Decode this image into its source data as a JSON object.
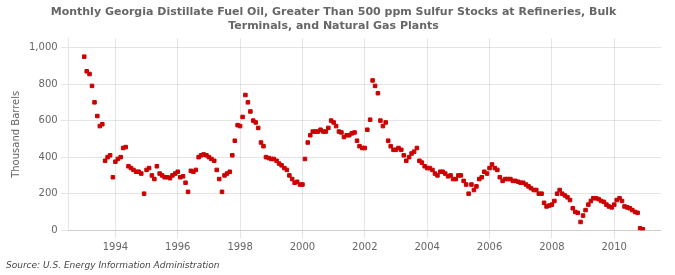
{
  "chart_data": {
    "type": "scatter",
    "title": "Monthly Georgia Distillate Fuel Oil, Greater Than 500 ppm Sulfur Stocks at Refineries, Bulk\nTerminals, and Natural Gas Plants",
    "ylabel": "Thousand Barrels",
    "annotation": "Source: U.S. Energy Information Administration",
    "color": "#cc0000",
    "marker": "square",
    "grid": true,
    "xlim": [
      1992.5,
      2011.5
    ],
    "xticks": [
      1994,
      1996,
      1998,
      2000,
      2002,
      2004,
      2006,
      2008,
      2010
    ],
    "ylim": [
      0,
      1050
    ],
    "yticks": [
      0,
      200,
      400,
      600,
      800,
      {
        "value": 1000,
        "label": "1,000"
      }
    ],
    "x": [
      1993.0,
      1993.08,
      1993.17,
      1993.25,
      1993.33,
      1993.42,
      1993.5,
      1993.58,
      1993.67,
      1993.75,
      1993.83,
      1993.92,
      1994.0,
      1994.08,
      1994.17,
      1994.25,
      1994.33,
      1994.42,
      1994.5,
      1994.58,
      1994.67,
      1994.75,
      1994.83,
      1994.92,
      1995.0,
      1995.08,
      1995.17,
      1995.25,
      1995.33,
      1995.42,
      1995.5,
      1995.58,
      1995.67,
      1995.75,
      1995.83,
      1995.92,
      1996.0,
      1996.08,
      1996.17,
      1996.25,
      1996.33,
      1996.42,
      1996.5,
      1996.58,
      1996.67,
      1996.75,
      1996.83,
      1996.92,
      1997.0,
      1997.08,
      1997.17,
      1997.25,
      1997.33,
      1997.42,
      1997.5,
      1997.58,
      1997.67,
      1997.75,
      1997.83,
      1997.92,
      1998.0,
      1998.08,
      1998.17,
      1998.25,
      1998.33,
      1998.42,
      1998.5,
      1998.58,
      1998.67,
      1998.75,
      1998.83,
      1998.92,
      1999.0,
      1999.08,
      1999.17,
      1999.25,
      1999.33,
      1999.42,
      1999.5,
      1999.58,
      1999.67,
      1999.75,
      1999.83,
      1999.92,
      2000.0,
      2000.08,
      2000.17,
      2000.25,
      2000.33,
      2000.42,
      2000.5,
      2000.58,
      2000.67,
      2000.75,
      2000.83,
      2000.92,
      2001.0,
      2001.08,
      2001.17,
      2001.25,
      2001.33,
      2001.42,
      2001.5,
      2001.58,
      2001.67,
      2001.75,
      2001.83,
      2001.92,
      2002.0,
      2002.08,
      2002.17,
      2002.25,
      2002.33,
      2002.42,
      2002.5,
      2002.58,
      2002.67,
      2002.75,
      2002.83,
      2002.92,
      2003.0,
      2003.08,
      2003.17,
      2003.25,
      2003.33,
      2003.42,
      2003.5,
      2003.58,
      2003.67,
      2003.75,
      2003.83,
      2003.92,
      2004.0,
      2004.08,
      2004.17,
      2004.25,
      2004.33,
      2004.42,
      2004.5,
      2004.58,
      2004.67,
      2004.75,
      2004.83,
      2004.92,
      2005.0,
      2005.08,
      2005.17,
      2005.25,
      2005.33,
      2005.42,
      2005.5,
      2005.58,
      2005.67,
      2005.75,
      2005.83,
      2005.92,
      2006.0,
      2006.08,
      2006.17,
      2006.25,
      2006.33,
      2006.42,
      2006.5,
      2006.58,
      2006.67,
      2006.75,
      2006.83,
      2006.92,
      2007.0,
      2007.08,
      2007.17,
      2007.25,
      2007.33,
      2007.42,
      2007.5,
      2007.58,
      2007.67,
      2007.75,
      2007.83,
      2007.92,
      2008.0,
      2008.08,
      2008.17,
      2008.25,
      2008.33,
      2008.42,
      2008.5,
      2008.58,
      2008.67,
      2008.75,
      2008.83,
      2008.92,
      2009.0,
      2009.08,
      2009.17,
      2009.25,
      2009.33,
      2009.42,
      2009.5,
      2009.58,
      2009.67,
      2009.75,
      2009.83,
      2009.92,
      2010.0,
      2010.08,
      2010.17,
      2010.25,
      2010.33,
      2010.42,
      2010.5,
      2010.58,
      2010.67,
      2010.75,
      2010.83,
      2010.92
    ],
    "values": [
      950,
      870,
      855,
      790,
      700,
      625,
      570,
      580,
      380,
      400,
      410,
      290,
      375,
      390,
      400,
      450,
      455,
      350,
      340,
      330,
      320,
      320,
      310,
      200,
      330,
      340,
      300,
      280,
      350,
      310,
      300,
      290,
      290,
      285,
      300,
      310,
      320,
      290,
      295,
      260,
      210,
      325,
      320,
      330,
      400,
      410,
      415,
      410,
      400,
      390,
      380,
      330,
      280,
      210,
      300,
      310,
      320,
      410,
      490,
      575,
      570,
      620,
      740,
      700,
      650,
      600,
      590,
      560,
      480,
      460,
      400,
      395,
      390,
      390,
      380,
      365,
      355,
      340,
      330,
      300,
      280,
      260,
      265,
      250,
      250,
      390,
      480,
      520,
      540,
      540,
      540,
      550,
      540,
      540,
      560,
      600,
      590,
      570,
      540,
      535,
      510,
      520,
      520,
      530,
      535,
      490,
      460,
      450,
      450,
      550,
      605,
      820,
      790,
      750,
      600,
      570,
      590,
      490,
      460,
      440,
      440,
      450,
      440,
      410,
      380,
      400,
      420,
      430,
      450,
      380,
      370,
      350,
      340,
      340,
      330,
      310,
      300,
      320,
      320,
      310,
      295,
      300,
      280,
      280,
      300,
      300,
      270,
      250,
      200,
      250,
      220,
      240,
      280,
      290,
      320,
      310,
      340,
      360,
      340,
      330,
      290,
      270,
      280,
      280,
      280,
      270,
      270,
      265,
      260,
      260,
      250,
      240,
      230,
      220,
      220,
      200,
      200,
      150,
      130,
      135,
      140,
      160,
      200,
      220,
      200,
      190,
      180,
      165,
      120,
      100,
      95,
      45,
      80,
      110,
      140,
      160,
      175,
      175,
      170,
      160,
      155,
      140,
      130,
      125,
      140,
      165,
      175,
      160,
      130,
      125,
      120,
      110,
      100,
      95,
      10,
      5
    ]
  }
}
